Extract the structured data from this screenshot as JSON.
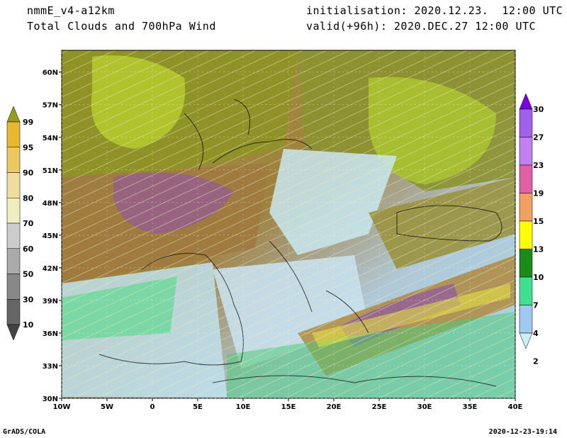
{
  "header": {
    "model": "nmmE_v4-a12km",
    "product": "Total Clouds and 700hPa Wind",
    "init": "initialisation: 2020.12.23.  12:00 UTC",
    "valid": "valid(+96h): 2020.DEC.27 12:00 UTC"
  },
  "footer": {
    "left": "GrADS/COLA",
    "right": "2020-12-23-19:14"
  },
  "map": {
    "lon_range": [
      -10,
      40
    ],
    "lat_range": [
      30,
      62
    ],
    "lon_ticks": [
      "10W",
      "5W",
      "0",
      "5E",
      "10E",
      "15E",
      "20E",
      "25E",
      "30E",
      "35E",
      "40E"
    ],
    "lat_ticks": [
      "30N",
      "33N",
      "36N",
      "39N",
      "42N",
      "45N",
      "48N",
      "51N",
      "54N",
      "57N",
      "60N"
    ]
  },
  "clouds_colorbar": {
    "labels": [
      "99",
      "95",
      "90",
      "80",
      "70",
      "60",
      "50",
      "30",
      "10"
    ],
    "colors": [
      "#9a9a1e",
      "#e8b830",
      "#ecc860",
      "#f0dca0",
      "#eeeec0",
      "#cccccc",
      "#aaaaaa",
      "#888888",
      "#666666",
      "#444444"
    ]
  },
  "wind_colorbar": {
    "labels": [
      "30",
      "27",
      "23",
      "19",
      "15",
      "13",
      "10",
      "7",
      "4",
      "2"
    ],
    "colors": [
      "#7a00e0",
      "#a060e8",
      "#c080f0",
      "#e060a8",
      "#f0a060",
      "#ffff00",
      "#1a8a1a",
      "#40e090",
      "#a0c8f0",
      "#c8f0f0"
    ]
  }
}
